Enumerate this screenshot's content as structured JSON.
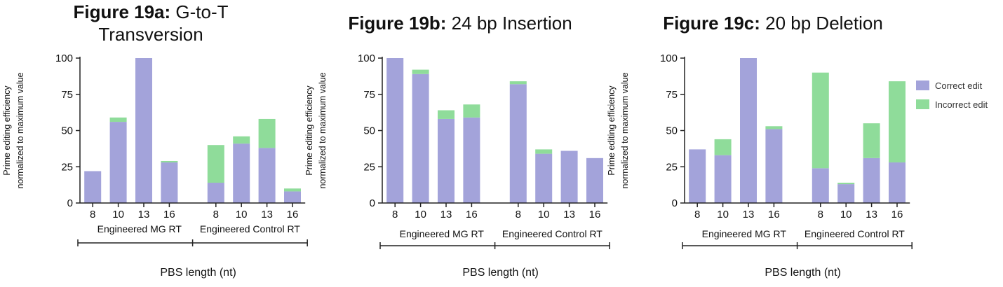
{
  "colors": {
    "correct": "#a3a3da",
    "incorrect": "#8fdc9a",
    "axis": "#222222"
  },
  "legend": [
    {
      "label": "Correct edit",
      "color": "#a3a3da"
    },
    {
      "label": "Incorrect edit",
      "color": "#8fdc9a"
    }
  ],
  "chart_data": [
    {
      "type": "bar",
      "stacked": true,
      "title_bold": "Figure 19a:",
      "title_rest": "G-to-T",
      "title_line2": "Transversion",
      "ylabel_lines": [
        "Prime editing efficiency",
        "normalized to maximum value"
      ],
      "xlabel": "PBS length (nt)",
      "ylim": [
        0,
        100
      ],
      "yticks": [
        0,
        25,
        50,
        75,
        100
      ],
      "groups": [
        "Engineered MG RT",
        "Engineered Control RT"
      ],
      "categories": [
        "8",
        "10",
        "13",
        "16",
        "8",
        "10",
        "13",
        "16"
      ],
      "series": [
        {
          "name": "Correct edit",
          "values": [
            22,
            56,
            100,
            28,
            14,
            41,
            38,
            8
          ]
        },
        {
          "name": "Incorrect edit",
          "values": [
            0,
            3,
            0,
            1,
            26,
            5,
            20,
            2
          ]
        }
      ]
    },
    {
      "type": "bar",
      "stacked": true,
      "title_bold": "Figure 19b:",
      "title_rest": "24 bp Insertion",
      "ylabel_lines": [
        "Prime editing efficiency",
        "normalized to maximum value"
      ],
      "xlabel": "PBS length (nt)",
      "ylim": [
        0,
        100
      ],
      "yticks": [
        0,
        25,
        50,
        75,
        100
      ],
      "groups": [
        "Engineered MG RT",
        "Engineered Control RT"
      ],
      "categories": [
        "8",
        "10",
        "13",
        "16",
        "8",
        "10",
        "13",
        "16"
      ],
      "series": [
        {
          "name": "Correct edit",
          "values": [
            100,
            89,
            58,
            59,
            82,
            34,
            36,
            31
          ]
        },
        {
          "name": "Incorrect edit",
          "values": [
            0,
            3,
            6,
            9,
            2,
            3,
            0,
            0
          ]
        }
      ]
    },
    {
      "type": "bar",
      "stacked": true,
      "title_bold": "Figure 19c:",
      "title_rest": "20 bp Deletion",
      "ylabel_lines": [
        "Prime editing efficiency",
        "normalized to maximum value"
      ],
      "xlabel": "PBS length (nt)",
      "ylim": [
        0,
        100
      ],
      "yticks": [
        0,
        25,
        50,
        75,
        100
      ],
      "groups": [
        "Engineered MG RT",
        "Engineered Control RT"
      ],
      "categories": [
        "8",
        "10",
        "13",
        "16",
        "8",
        "10",
        "13",
        "16"
      ],
      "series": [
        {
          "name": "Correct edit",
          "values": [
            37,
            33,
            100,
            51,
            24,
            13,
            31,
            28
          ]
        },
        {
          "name": "Incorrect edit",
          "values": [
            0,
            11,
            0,
            2,
            66,
            1,
            24,
            56
          ]
        }
      ]
    }
  ]
}
